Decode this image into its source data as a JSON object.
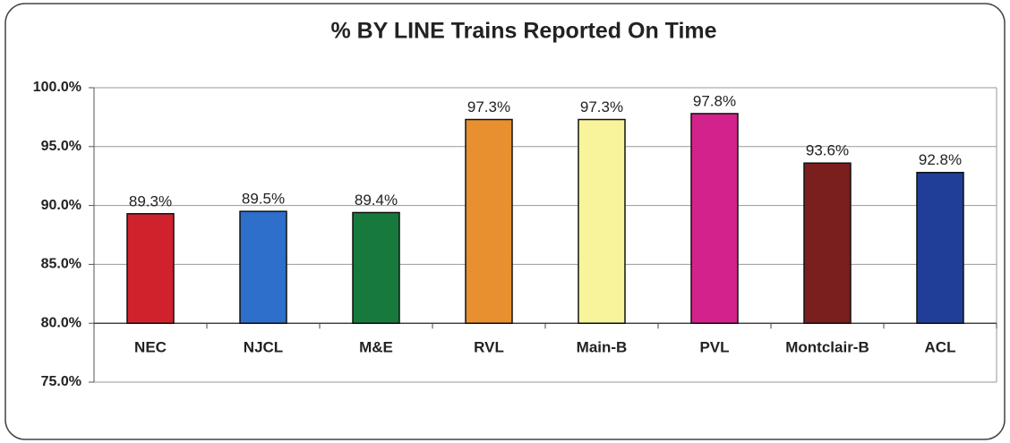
{
  "chart_data": {
    "type": "bar",
    "title": "%  BY LINE Trains Reported On Time",
    "categories": [
      "NEC",
      "NJCL",
      "M&E",
      "RVL",
      "Main-B",
      "PVL",
      "Montclair-B",
      "ACL"
    ],
    "values": [
      89.3,
      89.5,
      89.4,
      97.3,
      97.3,
      97.8,
      93.6,
      92.8
    ],
    "value_labels": [
      "89.3%",
      "89.5%",
      "89.4%",
      "97.3%",
      "97.3%",
      "97.8%",
      "93.6%",
      "92.8%"
    ],
    "colors": [
      "#d0222c",
      "#2d6fca",
      "#177a3c",
      "#e8902f",
      "#f8f49c",
      "#d3228b",
      "#7a1e1e",
      "#203d98"
    ],
    "ylim": [
      75,
      100
    ],
    "yticks": [
      {
        "value": 75,
        "label": "75.0%"
      },
      {
        "value": 80,
        "label": "80.0%"
      },
      {
        "value": 85,
        "label": "85.0%"
      },
      {
        "value": 90,
        "label": "90.0%"
      },
      {
        "value": 95,
        "label": "95.0%"
      },
      {
        "value": 100,
        "label": "100.0%"
      }
    ],
    "xaxis_crosses": 80,
    "grid": true
  }
}
